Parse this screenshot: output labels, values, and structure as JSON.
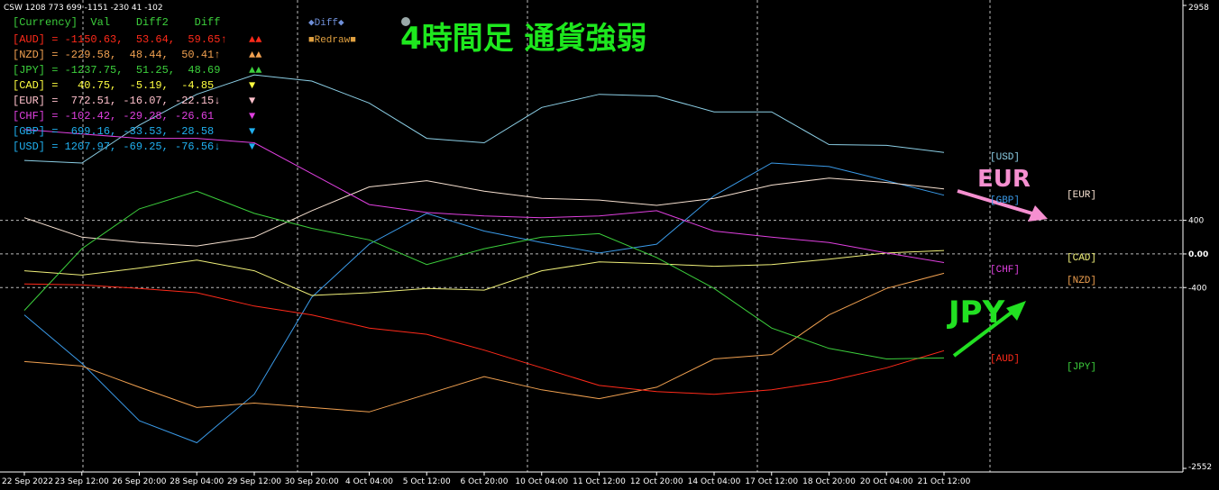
{
  "chart_data": {
    "type": "line",
    "header": "CSW 1208 773 699 -1151 -230 41 -102",
    "title": "4時間足 通貨強弱",
    "buttons": [
      "◆Diff◆",
      "■Redraw■"
    ],
    "annotations": [
      "EUR",
      "JPY"
    ],
    "table": {
      "header": "[Currency]  Val    Diff2    Diff",
      "rows": [
        {
          "text": "[AUD] = -1150.63,  53.64,  59.65↑",
          "signal": "▲▲",
          "color": "#ff2a1a"
        },
        {
          "text": "[NZD] = -229.58,  48.44,  50.41↑",
          "signal": "▲▲",
          "color": "#f0a050"
        },
        {
          "text": "[JPY] = -1237.75,  51.25,  48.69",
          "signal": "▲▲",
          "color": "#3ccf3c"
        },
        {
          "text": "[CAD] =   40.75,  -5.19,  -4.85",
          "signal": "▼",
          "color": "#ffff40"
        },
        {
          "text": "[EUR] =  772.51, -16.07, -22.15↓",
          "signal": "▼",
          "color": "#ffc0cb"
        },
        {
          "text": "[CHF] = -102.42, -29.28, -26.61",
          "signal": "▼",
          "color": "#e040e0"
        },
        {
          "text": "[GBP] =  699.16, -33.53, -28.58",
          "signal": "▼",
          "color": "#20b0f0"
        },
        {
          "text": "[USD] = 1207.97, -69.25, -76.56↓",
          "signal": "▼",
          "color": "#20b0f0"
        }
      ]
    },
    "categories": [
      "22 Sep 2022",
      "23 Sep 12:00",
      "26 Sep 20:00",
      "28 Sep 04:00",
      "29 Sep 12:00",
      "30 Sep 20:00",
      "4 Oct 04:00",
      "5 Oct 12:00",
      "6 Oct 20:00",
      "10 Oct 04:00",
      "11 Oct 12:00",
      "12 Oct 20:00",
      "14 Oct 04:00",
      "17 Oct 12:00",
      "18 Oct 20:00",
      "20 Oct 04:00",
      "21 Oct 12:00"
    ],
    "series": [
      {
        "name": "[USD]",
        "color": "#8ccfe6",
        "values": [
          1113,
          1082,
          1533,
          1900,
          2132,
          2058,
          1796,
          1376,
          1323,
          1743,
          1900,
          1880,
          1691,
          1691,
          1302,
          1292,
          1208
        ]
      },
      {
        "name": "[GBP]",
        "color": "#3a9ae8",
        "values": [
          -725,
          -1302,
          -1985,
          -2247,
          -1670,
          -515,
          116,
          483,
          273,
          137,
          11,
          116,
          693,
          1082,
          1040,
          872,
          699
        ]
      },
      {
        "name": "[EUR]",
        "color": "#f6e0d0",
        "values": [
          431,
          200,
          137,
          95,
          200,
          515,
          798,
          872,
          746,
          662,
          641,
          578,
          662,
          819,
          903,
          851,
          773
        ]
      },
      {
        "name": "[CAD]",
        "color": "#f0f07a",
        "values": [
          -200,
          -252,
          -168,
          -74,
          -200,
          -494,
          -462,
          -410,
          -431,
          -200,
          -95,
          -116,
          -147,
          -126,
          -63,
          11,
          41
        ]
      },
      {
        "name": "[CHF]",
        "color": "#e040e0",
        "values": [
          1481,
          1428,
          1376,
          1376,
          1323,
          956,
          588,
          494,
          452,
          431,
          452,
          515,
          273,
          200,
          137,
          11,
          -102
        ]
      },
      {
        "name": "[NZD]",
        "color": "#f0a050",
        "values": [
          -1281,
          -1334,
          -1586,
          -1827,
          -1775,
          -1827,
          -1880,
          -1670,
          -1460,
          -1617,
          -1722,
          -1586,
          -1250,
          -1197,
          -725,
          -410,
          -230
        ]
      },
      {
        "name": "[AUD]",
        "color": "#ff2a1a",
        "values": [
          -357,
          -368,
          -410,
          -462,
          -620,
          -725,
          -882,
          -956,
          -1145,
          -1355,
          -1565,
          -1638,
          -1670,
          -1617,
          -1512,
          -1355,
          -1151
        ]
      },
      {
        "name": "[JPY]",
        "color": "#3ccf3c",
        "values": [
          -672,
          63,
          536,
          746,
          483,
          305,
          168,
          -126,
          63,
          200,
          242,
          -42,
          -410,
          -882,
          -1124,
          -1250,
          -1238
        ]
      }
    ],
    "ylim": [
      -2552,
      2958
    ],
    "yticks": [
      2958,
      400,
      {
        "value": 0,
        "label": "0.00"
      },
      -400,
      -2552
    ],
    "grid": true
  }
}
